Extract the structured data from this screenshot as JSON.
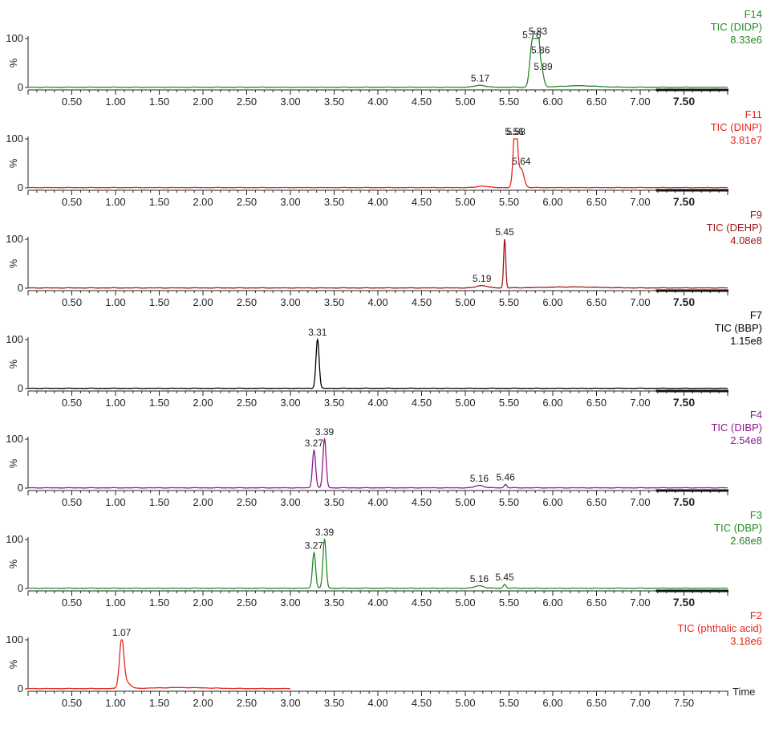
{
  "x_axis_title": "Time",
  "y_percent_label": "%",
  "chart_data": [
    {
      "type": "line",
      "fn": "F14",
      "trace": "TIC (DIDP)",
      "intensity": "8.33e6",
      "color": "#228b22",
      "xlim": [
        0,
        8
      ],
      "ylim": [
        0,
        100
      ],
      "y_ticks": [
        "100",
        "0"
      ],
      "x_ticks": [
        "0.50",
        "1.00",
        "1.50",
        "2.00",
        "2.50",
        "3.00",
        "3.50",
        "4.00",
        "4.50",
        "5.00",
        "5.50",
        "6.00",
        "6.50",
        "7.00",
        "7.50"
      ],
      "highlight_tick": "7.50",
      "trace_end": 8.0,
      "peaks": [
        {
          "rt": 5.17,
          "height": 4,
          "width": 0.06
        },
        {
          "rt": 5.76,
          "height": 80,
          "width": 0.025
        },
        {
          "rt": 5.8,
          "height": 95,
          "width": 0.02
        },
        {
          "rt": 5.83,
          "height": 100,
          "width": 0.015
        },
        {
          "rt": 5.86,
          "height": 42,
          "width": 0.02
        },
        {
          "rt": 5.89,
          "height": 14,
          "width": 0.02
        },
        {
          "rt": 6.3,
          "height": 3,
          "width": 0.2
        }
      ],
      "labels": [
        {
          "text": "5.17",
          "rt": 5.17
        },
        {
          "text": "5.76",
          "rt": 5.76
        },
        {
          "text": "5.83",
          "rt": 5.83
        },
        {
          "text": "5.86",
          "rt": 5.86
        },
        {
          "text": "5.89",
          "rt": 5.89
        }
      ]
    },
    {
      "type": "line",
      "fn": "F11",
      "trace": "TIC (DINP)",
      "intensity": "3.81e7",
      "color": "#e8261c",
      "xlim": [
        0,
        8
      ],
      "ylim": [
        0,
        100
      ],
      "y_ticks": [
        "100",
        "0"
      ],
      "x_ticks": [
        "0.50",
        "1.00",
        "1.50",
        "2.00",
        "2.50",
        "3.00",
        "3.50",
        "4.00",
        "4.50",
        "5.00",
        "5.50",
        "6.00",
        "6.50",
        "7.00",
        "7.50"
      ],
      "highlight_tick": "7.50",
      "trace_end": 8.0,
      "peaks": [
        {
          "rt": 5.2,
          "height": 3,
          "width": 0.06
        },
        {
          "rt": 5.56,
          "height": 58,
          "width": 0.02
        },
        {
          "rt": 5.58,
          "height": 100,
          "width": 0.02
        },
        {
          "rt": 5.64,
          "height": 38,
          "width": 0.03
        }
      ],
      "labels": [
        {
          "text": "5.56",
          "rt": 5.56
        },
        {
          "text": "5.58",
          "rt": 5.58
        },
        {
          "text": "5.64",
          "rt": 5.64
        }
      ]
    },
    {
      "type": "line",
      "fn": "F9",
      "trace": "TIC (DEHP)",
      "intensity": "4.08e8",
      "color": "#a01818",
      "xlim": [
        0,
        8
      ],
      "ylim": [
        0,
        100
      ],
      "y_ticks": [
        "100",
        "0"
      ],
      "x_ticks": [
        "0.50",
        "1.00",
        "1.50",
        "2.00",
        "2.50",
        "3.00",
        "3.50",
        "4.00",
        "4.50",
        "5.00",
        "5.50",
        "6.00",
        "6.50",
        "7.00",
        "7.50"
      ],
      "highlight_tick": "7.50",
      "trace_end": 8.0,
      "peaks": [
        {
          "rt": 5.19,
          "height": 5,
          "width": 0.06
        },
        {
          "rt": 5.45,
          "height": 100,
          "width": 0.012
        },
        {
          "rt": 6.2,
          "height": 2,
          "width": 0.3
        }
      ],
      "labels": [
        {
          "text": "5.19",
          "rt": 5.19
        },
        {
          "text": "5.45",
          "rt": 5.45
        }
      ]
    },
    {
      "type": "line",
      "fn": "F7",
      "trace": "TIC (BBP)",
      "intensity": "1.15e8",
      "color": "#000000",
      "xlim": [
        0,
        8
      ],
      "ylim": [
        0,
        100
      ],
      "y_ticks": [
        "100",
        "0"
      ],
      "x_ticks": [
        "0.50",
        "1.00",
        "1.50",
        "2.00",
        "2.50",
        "3.00",
        "3.50",
        "4.00",
        "4.50",
        "5.00",
        "5.50",
        "6.00",
        "6.50",
        "7.00",
        "7.50"
      ],
      "highlight_tick": "7.50",
      "trace_end": 8.0,
      "peaks": [
        {
          "rt": 3.31,
          "height": 100,
          "width": 0.018
        }
      ],
      "labels": [
        {
          "text": "3.31",
          "rt": 3.31
        }
      ]
    },
    {
      "type": "line",
      "fn": "F4",
      "trace": "TIC (DIBP)",
      "intensity": "2.54e8",
      "color": "#8e1a8e",
      "xlim": [
        0,
        8
      ],
      "ylim": [
        0,
        100
      ],
      "y_ticks": [
        "100",
        "0"
      ],
      "x_ticks": [
        "0.50",
        "1.00",
        "1.50",
        "2.00",
        "2.50",
        "3.00",
        "3.50",
        "4.00",
        "4.50",
        "5.00",
        "5.50",
        "6.00",
        "6.50",
        "7.00",
        "7.50"
      ],
      "highlight_tick": "7.50",
      "trace_end": 8.0,
      "peaks": [
        {
          "rt": 3.27,
          "height": 77,
          "width": 0.018
        },
        {
          "rt": 3.39,
          "height": 100,
          "width": 0.018
        },
        {
          "rt": 5.16,
          "height": 5,
          "width": 0.05
        },
        {
          "rt": 5.46,
          "height": 7,
          "width": 0.015
        }
      ],
      "labels": [
        {
          "text": "3.27",
          "rt": 3.27
        },
        {
          "text": "3.39",
          "rt": 3.39
        },
        {
          "text": "5.16",
          "rt": 5.16
        },
        {
          "text": "5.46",
          "rt": 5.46
        }
      ]
    },
    {
      "type": "line",
      "fn": "F3",
      "trace": "TIC (DBP)",
      "intensity": "2.68e8",
      "color": "#228b22",
      "xlim": [
        0,
        8
      ],
      "ylim": [
        0,
        100
      ],
      "y_ticks": [
        "100",
        "0"
      ],
      "x_ticks": [
        "0.50",
        "1.00",
        "1.50",
        "2.00",
        "2.50",
        "3.00",
        "3.50",
        "4.00",
        "4.50",
        "5.00",
        "5.50",
        "6.00",
        "6.50",
        "7.00",
        "7.50"
      ],
      "highlight_tick": "7.50",
      "trace_end": 8.0,
      "peaks": [
        {
          "rt": 3.27,
          "height": 73,
          "width": 0.018
        },
        {
          "rt": 3.39,
          "height": 100,
          "width": 0.018
        },
        {
          "rt": 5.16,
          "height": 5,
          "width": 0.05
        },
        {
          "rt": 5.45,
          "height": 8,
          "width": 0.015
        }
      ],
      "labels": [
        {
          "text": "3.27",
          "rt": 3.27
        },
        {
          "text": "3.39",
          "rt": 3.39
        },
        {
          "text": "5.16",
          "rt": 5.16
        },
        {
          "text": "5.45",
          "rt": 5.45
        }
      ]
    },
    {
      "type": "line",
      "fn": "F2",
      "trace": "TIC (phthalic acid)",
      "intensity": "3.18e6",
      "color": "#e8261c",
      "xlim": [
        0,
        8
      ],
      "ylim": [
        0,
        100
      ],
      "y_ticks": [
        "100",
        "0"
      ],
      "x_ticks": [
        "0.50",
        "1.00",
        "1.50",
        "2.00",
        "2.50",
        "3.00",
        "3.50",
        "4.00",
        "4.50",
        "5.00",
        "5.50",
        "6.00",
        "6.50",
        "7.00",
        "7.50"
      ],
      "highlight_tick": "",
      "trace_end": 3.0,
      "peaks": [
        {
          "rt": 1.07,
          "height": 100,
          "width": 0.025
        },
        {
          "rt": 1.13,
          "height": 12,
          "width": 0.04
        },
        {
          "rt": 1.75,
          "height": 2,
          "width": 0.3
        }
      ],
      "labels": [
        {
          "text": "1.07",
          "rt": 1.07
        }
      ]
    }
  ]
}
